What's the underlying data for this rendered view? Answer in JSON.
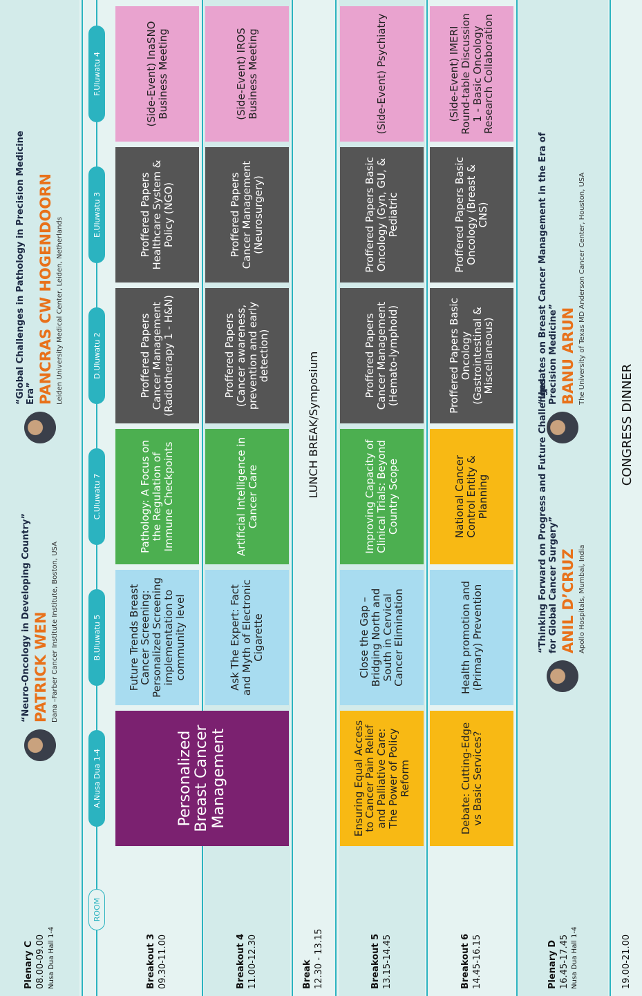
{
  "plenary_c": {
    "title": "Plenary C",
    "time": "08.00-09.00",
    "venue": "Nusa Dua Hall 1-4",
    "speakers": [
      {
        "quote": "“Neuro-Oncology in Developing Country”",
        "name": "PATRICK WEN",
        "affiliation": "Dana –Farber Cancer Institute Institute, Boston, USA"
      },
      {
        "quote": "“Global Challenges in Pathology in Precision Medicine Era”",
        "name": "PANCRAS CW HOGENDOORN",
        "affiliation": "Leiden University Medical Center, Leiden, Netherlands"
      }
    ]
  },
  "room_label": "ROOM",
  "rooms": [
    "A.Nusa Dua 1-4",
    "B.Uluwatu 5",
    "C.Uluwatu 7",
    "D.Uluwatu 2",
    "E.Uluwatu 3",
    "F.Uluwatu 4"
  ],
  "breakout_3": {
    "title": "Breakout 3",
    "time": "09.30-11.00",
    "sessions": [
      {
        "text": "Personalized Breast Cancer Management",
        "color": "#7b2170"
      },
      {
        "text": "Future Trends Breast Cancer Screening: Personalized Screening implementation to community level",
        "color": "#a8dcf0"
      },
      {
        "text": "Pathology: A Focus on the Regulation of Immune Checkpoints",
        "color": "#4caf50"
      },
      {
        "text": "Proffered Papers Cancer Management (Radiotherapy 1 - H&N)",
        "color": "#555555"
      },
      {
        "text": "Proffered Papers Healthcare System & Policy (NGO)",
        "color": "#555555"
      },
      {
        "text": "(Side-Event) InaSNO Business Meeting",
        "color": "#e9a3cf"
      }
    ]
  },
  "breakout_4": {
    "title": "Breakout 4",
    "time": "11.00-12.30",
    "sessions": [
      {
        "text": "Ask The Expert: Fact and Myth of Electronic Cigarette",
        "color": "#a8dcf0"
      },
      {
        "text": "Artificial Intelligence in Cancer Care",
        "color": "#4caf50"
      },
      {
        "text": "Proffered Papers (Cancer awareness, prevention and early detection)",
        "color": "#555555"
      },
      {
        "text": "Proffered Papers Cancer Management (Neurosurgery)",
        "color": "#555555"
      },
      {
        "text": "(Side-Event) IROS Business Meeting",
        "color": "#e9a3cf"
      }
    ]
  },
  "break": {
    "title": "Break",
    "time": "12.30 - 13.15",
    "text": "LUNCH BREAK/Symposium"
  },
  "breakout_5": {
    "title": "Breakout 5",
    "time": "13.15-14.45",
    "sessions": [
      {
        "text": "Ensuring Equal Access to Cancer Pain Relief and Palliative Care: The Power of Policy Reform",
        "color": "#f8b914"
      },
      {
        "text": "Close the Gap – Bridging North and South in Cervical Cancer Elimination",
        "color": "#a8dcf0"
      },
      {
        "text": "Improving Capacity of Clinical Trials: Beyond Country Scope",
        "color": "#4caf50"
      },
      {
        "text": "Proffered Papers Cancer Management (Hemato-lymphoid)",
        "color": "#555555"
      },
      {
        "text": "Proffered Papers Basic Oncology (Gyn, GU, & Pediatric",
        "color": "#555555"
      },
      {
        "text": "(Side-Event) Psychiatry",
        "color": "#e9a3cf"
      }
    ]
  },
  "breakout_6": {
    "title": "Breakout 6",
    "time": "14.45-16.15",
    "sessions": [
      {
        "text": "Debate: Cutting-Edge vs Basic Services?",
        "color": "#f8b914"
      },
      {
        "text": "Health promotion and (Primary) Prevention",
        "color": "#a8dcf0"
      },
      {
        "text": "National Cancer Control Entity & Planning",
        "color": "#f8b914"
      },
      {
        "text": "Proffered Papers Basic Oncology (Gastrointestinal & Miscellaneous)",
        "color": "#555555"
      },
      {
        "text": "Proffered Papers Basic Oncology (Breast & CNS)",
        "color": "#555555"
      },
      {
        "text": "(Side-Event) IMERI Round-table Discussion 1 - Basic Oncology Research Collaboration",
        "color": "#e9a3cf"
      }
    ]
  },
  "plenary_d": {
    "title": "Plenary D",
    "time": "16.45-17.45",
    "venue": "Nusa Dua Hall 1-4",
    "speakers": [
      {
        "quote": "“Thinking Forward on Progress and Future Challenges for Global Cancer Surgery”",
        "name": "ANIL D’CRUZ",
        "affiliation": "Apollo Hospitals, Mumbai, India"
      },
      {
        "quote": "“Updates on Breast Cancer Management in the Era of Precision Medicine”",
        "name": "BANU ARUN",
        "affiliation": "The University of Texas MD Anderson Cancer Center, Houston, USA"
      }
    ]
  },
  "dinner": {
    "time": "19.00-21.00",
    "text": "CONGRESS DINNER"
  }
}
